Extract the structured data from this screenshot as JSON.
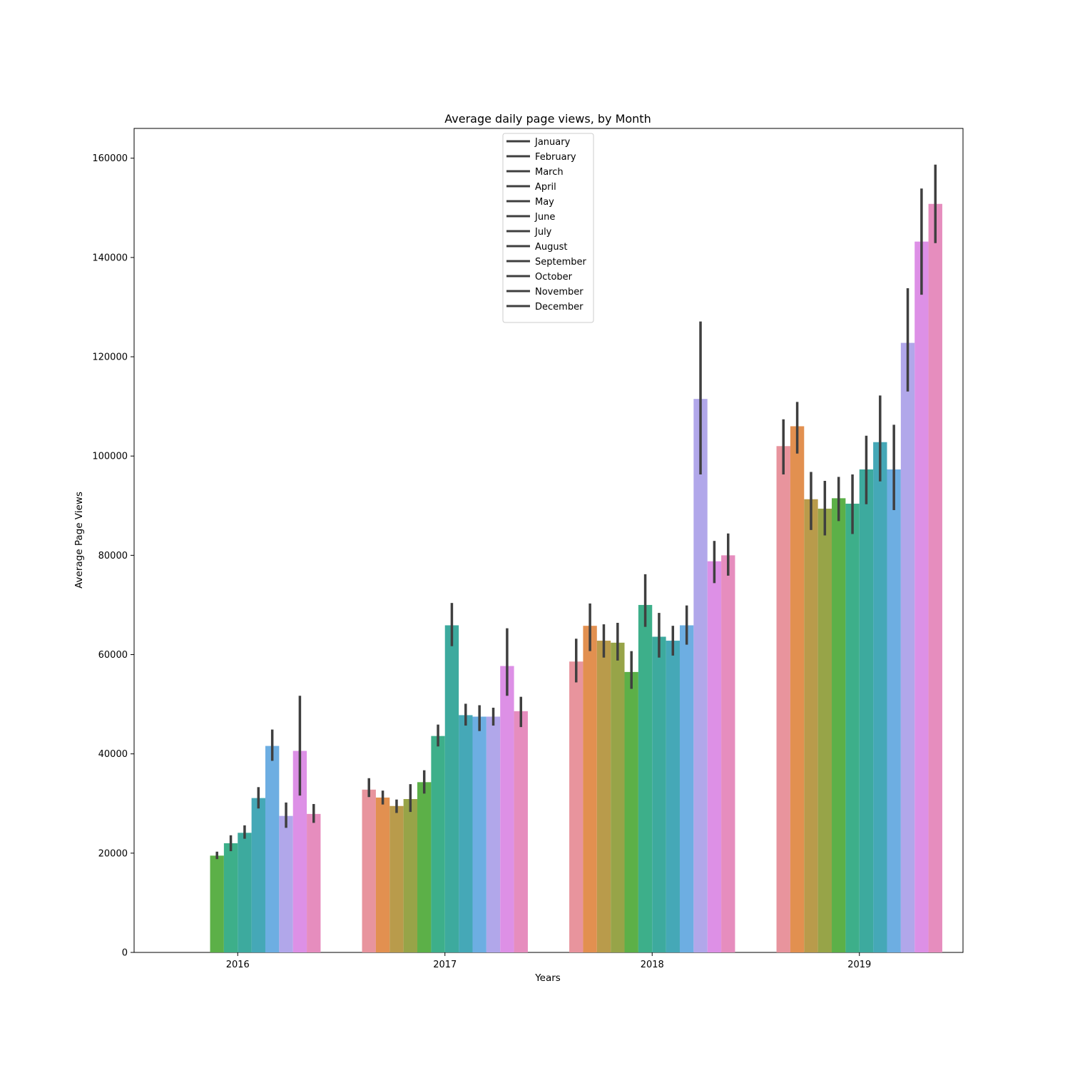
{
  "chart_data": {
    "type": "bar",
    "title": "Average daily page views, by Month",
    "xlabel": "Years",
    "ylabel": "Average Page Views",
    "categories": [
      "2016",
      "2017",
      "2018",
      "2019"
    ],
    "ylim": [
      0,
      166000
    ],
    "yticks": [
      0,
      20000,
      40000,
      60000,
      80000,
      100000,
      120000,
      140000,
      160000
    ],
    "legend_position": "top-center",
    "grid": false,
    "error_bars": true,
    "series": [
      {
        "name": "January",
        "color": "#e8949d",
        "values": [
          null,
          32800,
          58600,
          102000
        ],
        "err_low": [
          null,
          31300,
          54400,
          96300
        ],
        "err_high": [
          null,
          35100,
          63200,
          107400
        ]
      },
      {
        "name": "February",
        "color": "#e29050",
        "values": [
          null,
          31200,
          65800,
          106000
        ],
        "err_low": [
          null,
          29800,
          60700,
          100500
        ],
        "err_high": [
          null,
          32600,
          70300,
          110900
        ]
      },
      {
        "name": "March",
        "color": "#b99b4b",
        "values": [
          null,
          29500,
          62800,
          91300
        ],
        "err_low": [
          null,
          28100,
          59400,
          85100
        ],
        "err_high": [
          null,
          30800,
          66100,
          96800
        ]
      },
      {
        "name": "April",
        "color": "#97a448",
        "values": [
          null,
          30900,
          62400,
          89400
        ],
        "err_low": [
          null,
          28300,
          58800,
          84000
        ],
        "err_high": [
          null,
          33900,
          66400,
          95000
        ]
      },
      {
        "name": "May",
        "color": "#5cb048",
        "values": [
          19500,
          34300,
          56500,
          91500
        ],
        "err_low": [
          18800,
          32000,
          53100,
          86900
        ],
        "err_high": [
          20300,
          36700,
          60700,
          95800
        ]
      },
      {
        "name": "June",
        "color": "#3daf8a",
        "values": [
          22000,
          43600,
          70000,
          90400
        ],
        "err_low": [
          20400,
          41500,
          65600,
          84300
        ],
        "err_high": [
          23600,
          45900,
          76200,
          96300
        ]
      },
      {
        "name": "July",
        "color": "#3daa9e",
        "values": [
          24100,
          65900,
          63600,
          97300
        ],
        "err_low": [
          22900,
          61700,
          59400,
          90300
        ],
        "err_high": [
          25600,
          70400,
          68400,
          104100
        ]
      },
      {
        "name": "August",
        "color": "#45a8b7",
        "values": [
          31100,
          47800,
          62800,
          102800
        ],
        "err_low": [
          29000,
          45700,
          59800,
          94900
        ],
        "err_high": [
          33300,
          50100,
          65800,
          112200
        ]
      },
      {
        "name": "September",
        "color": "#6daee2",
        "values": [
          41600,
          47500,
          65900,
          97300
        ],
        "err_low": [
          38600,
          44600,
          62000,
          89100
        ],
        "err_high": [
          44900,
          49800,
          69900,
          106300
        ]
      },
      {
        "name": "October",
        "color": "#b1a7ea",
        "values": [
          27500,
          47500,
          111500,
          122800
        ],
        "err_low": [
          25100,
          45700,
          96300,
          113000
        ],
        "err_high": [
          30200,
          49300,
          127100,
          133800
        ]
      },
      {
        "name": "November",
        "color": "#dd90e6",
        "values": [
          40600,
          57700,
          78800,
          143200
        ],
        "err_low": [
          31600,
          51700,
          74400,
          132500
        ],
        "err_high": [
          51700,
          65300,
          82900,
          153900
        ]
      },
      {
        "name": "December",
        "color": "#e68dbe",
        "values": [
          27900,
          48600,
          80000,
          150800
        ],
        "err_low": [
          26100,
          45400,
          75900,
          142900
        ],
        "err_high": [
          29900,
          51500,
          84400,
          158700
        ]
      }
    ]
  }
}
